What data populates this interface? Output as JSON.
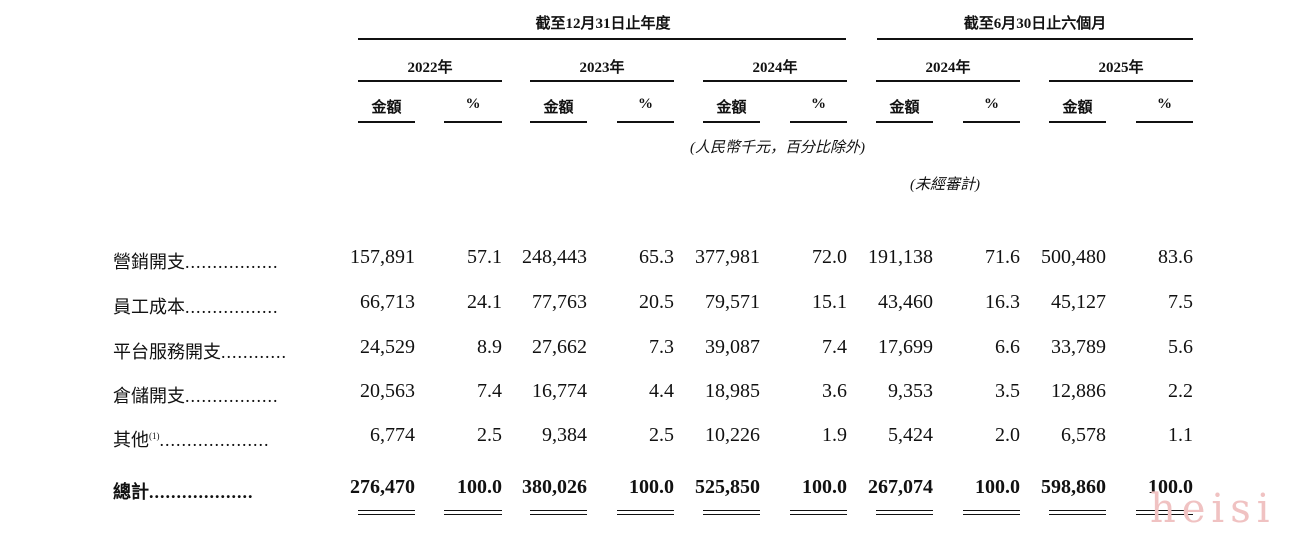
{
  "header": {
    "group1": "截至12月31日止年度",
    "group2": "截至6月30日止六個月",
    "years": [
      "2022年",
      "2023年",
      "2024年",
      "2024年",
      "2025年"
    ],
    "amount": "金額",
    "pct": "%",
    "currency_note": "(人民幣千元，百分比除外)",
    "unaudited_note": "(未經審計)"
  },
  "rows": [
    {
      "label": "營銷開支",
      "dots": ".................",
      "values": [
        "157,891",
        "57.1",
        "248,443",
        "65.3",
        "377,981",
        "72.0",
        "191,138",
        "71.6",
        "500,480",
        "83.6"
      ]
    },
    {
      "label": "員工成本",
      "dots": ".................",
      "values": [
        "66,713",
        "24.1",
        "77,763",
        "20.5",
        "79,571",
        "15.1",
        "43,460",
        "16.3",
        "45,127",
        "7.5"
      ]
    },
    {
      "label": "平台服務開支",
      "dots": "............",
      "values": [
        "24,529",
        "8.9",
        "27,662",
        "7.3",
        "39,087",
        "7.4",
        "17,699",
        "6.6",
        "33,789",
        "5.6"
      ]
    },
    {
      "label": "倉儲開支",
      "dots": ".................",
      "values": [
        "20,563",
        "7.4",
        "16,774",
        "4.4",
        "18,985",
        "3.6",
        "9,353",
        "3.5",
        "12,886",
        "2.2"
      ]
    },
    {
      "label": "其他",
      "sup": "(1)",
      "dots": "....................",
      "values": [
        "6,774",
        "2.5",
        "9,384",
        "2.5",
        "10,226",
        "1.9",
        "5,424",
        "2.0",
        "6,578",
        "1.1"
      ]
    },
    {
      "label": "總計",
      "dots": "...................",
      "values": [
        "276,470",
        "100.0",
        "380,026",
        "100.0",
        "525,850",
        "100.0",
        "267,074",
        "100.0",
        "598,860",
        "100.0"
      ]
    }
  ],
  "watermark": "heisi"
}
